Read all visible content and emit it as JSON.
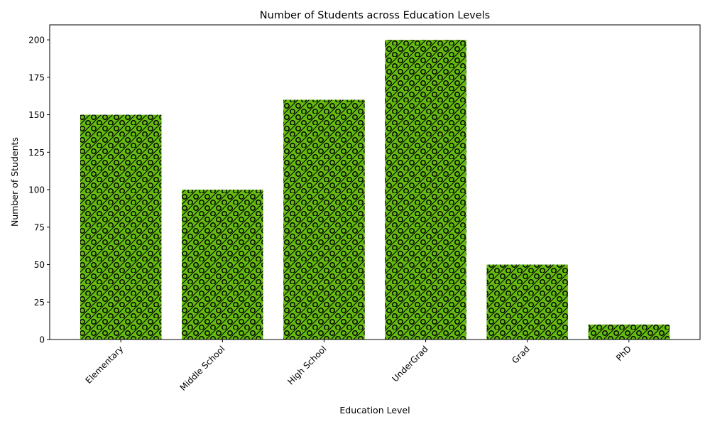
{
  "chart_data": {
    "type": "bar",
    "title": "Number of Students across Education Levels",
    "xlabel": "Education Level",
    "ylabel": "Number of Students",
    "categories": [
      "Elementary",
      "Middle School",
      "High School",
      "UnderGrad",
      "Grad",
      "PhD"
    ],
    "values": [
      150,
      100,
      160,
      200,
      50,
      10
    ],
    "ylim": [
      0,
      210
    ],
    "yticks": [
      0,
      25,
      50,
      75,
      100,
      125,
      150,
      175,
      200
    ],
    "ytick_labels": [
      "0",
      "25",
      "50",
      "75",
      "100",
      "125",
      "150",
      "175",
      "200"
    ],
    "bar_color": "#66bb11",
    "hatch": "/o",
    "grid": false,
    "legend": "none"
  }
}
